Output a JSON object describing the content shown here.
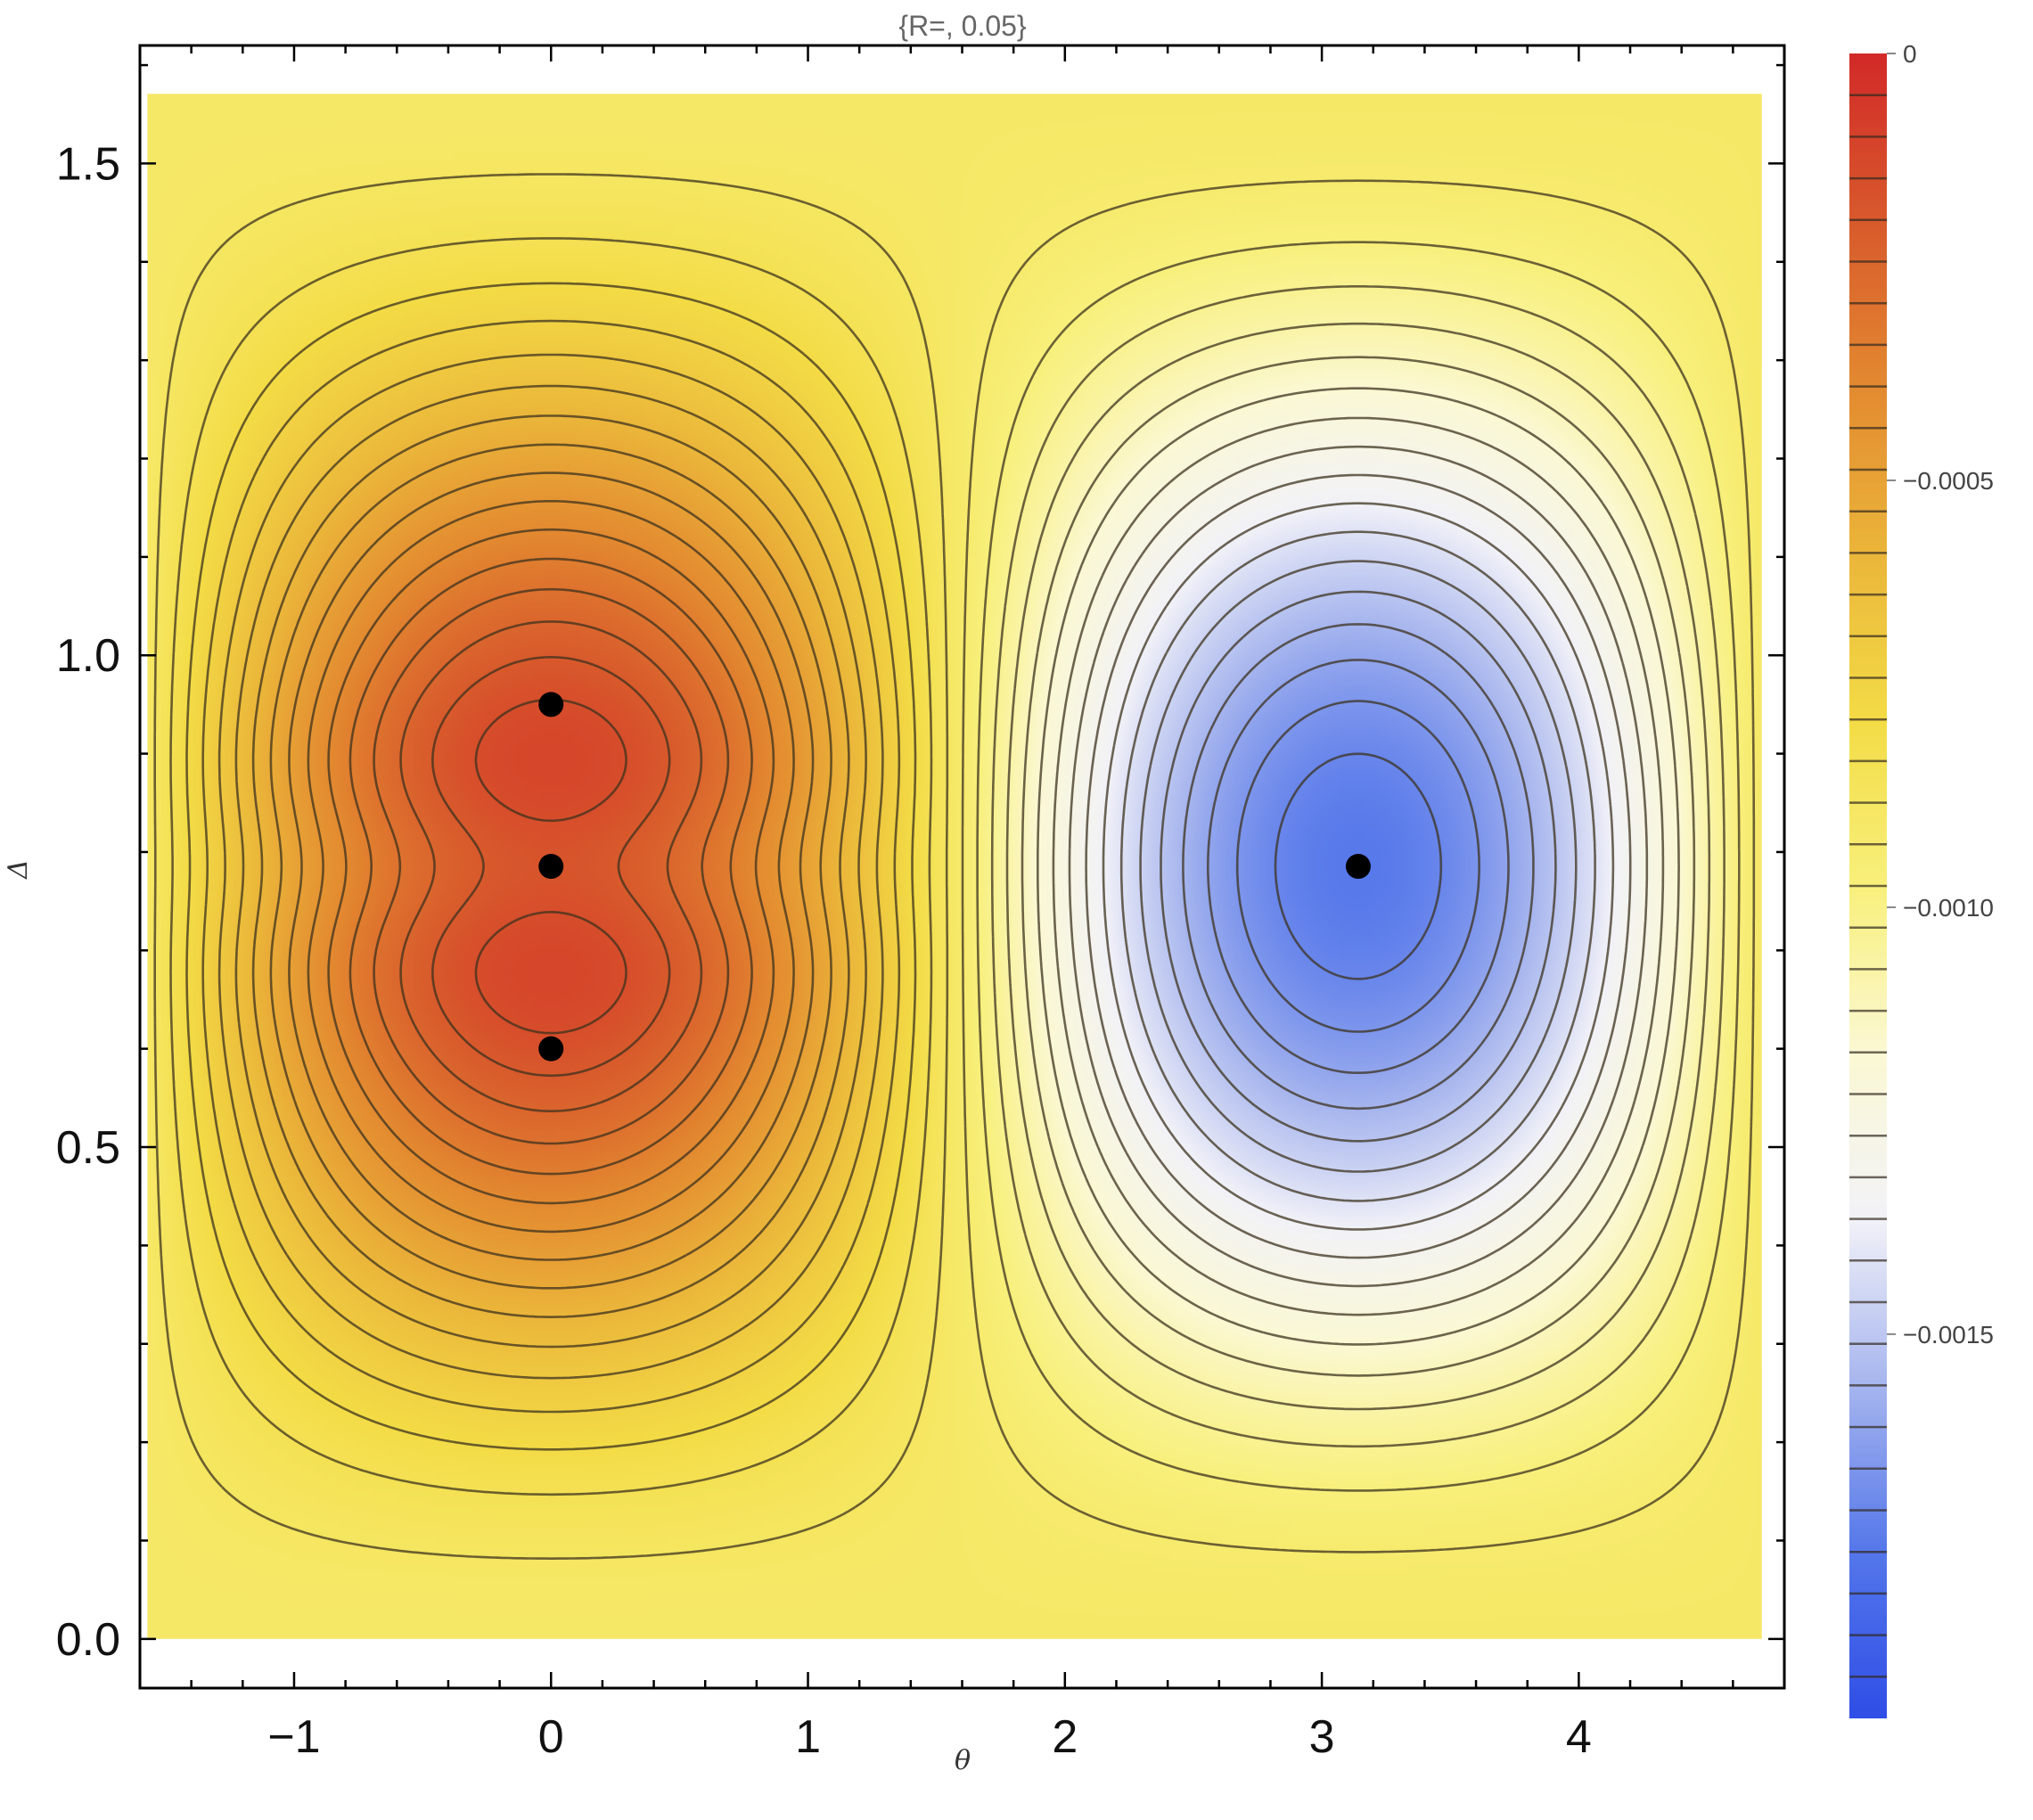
{
  "chart_data": {
    "type": "heatmap",
    "subtype": "contour",
    "title": "{R=, 0.05}",
    "xlabel": "θ",
    "ylabel": "Δ",
    "xlim": [
      -1.6,
      4.8
    ],
    "ylim": [
      -0.05,
      1.62
    ],
    "data_xrange": [
      -1.5708,
      4.7124
    ],
    "data_yrange": [
      0.0,
      1.5708
    ],
    "x_ticks": [
      {
        "value": -1,
        "label": "−1"
      },
      {
        "value": 0,
        "label": "0"
      },
      {
        "value": 1,
        "label": "1"
      },
      {
        "value": 2,
        "label": "2"
      },
      {
        "value": 3,
        "label": "3"
      },
      {
        "value": 4,
        "label": "4"
      }
    ],
    "y_ticks": [
      {
        "value": 0.0,
        "label": "0.0"
      },
      {
        "value": 0.5,
        "label": "0.5"
      },
      {
        "value": 1.0,
        "label": "1.0"
      },
      {
        "value": 1.5,
        "label": "1.5"
      }
    ],
    "colorbar": {
      "min": -0.00195,
      "max": 0.0,
      "ticks": [
        {
          "value": 0,
          "label": "0"
        },
        {
          "value": -0.0005,
          "label": "−0.0005"
        },
        {
          "value": -0.001,
          "label": "−0.0010"
        },
        {
          "value": -0.0015,
          "label": "−0.0015"
        }
      ],
      "colormap": [
        "#2f4ee6",
        "#5577ea",
        "#a6b5ee",
        "#f2f2f8",
        "#fbf8d4",
        "#f8f07c",
        "#f3dc46",
        "#ebb63a",
        "#e38a30",
        "#d85a2c",
        "#d22a28"
      ]
    },
    "grid": false,
    "points": [
      {
        "x": 0.0,
        "y": 0.95
      },
      {
        "x": 0.0,
        "y": 0.7854
      },
      {
        "x": 0.0,
        "y": 0.6
      },
      {
        "x": 3.1416,
        "y": 0.7854
      }
    ],
    "critical_regions": [
      {
        "kind": "maximum-lobe",
        "x": 0.0,
        "y": 0.95
      },
      {
        "kind": "saddle",
        "x": 0.0,
        "y": 0.7854
      },
      {
        "kind": "maximum-lobe",
        "x": 0.0,
        "y": 0.6
      },
      {
        "kind": "minimum",
        "x": 3.1416,
        "y": 0.7854
      }
    ]
  }
}
